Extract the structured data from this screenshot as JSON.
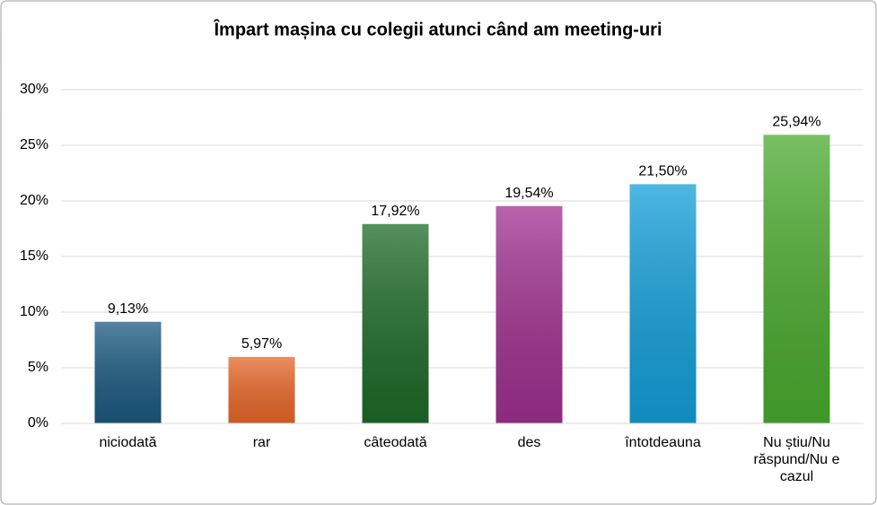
{
  "chart_data": {
    "type": "bar",
    "title": "Împart mașina cu colegii atunci când am meeting-uri",
    "categories": [
      "niciodată",
      "rar",
      "câteodată",
      "des",
      "întotdeauna",
      "Nu știu/Nu răspund/Nu e cazul"
    ],
    "values": [
      9.13,
      5.97,
      17.92,
      19.54,
      21.5,
      25.94
    ],
    "value_labels": [
      "9,13%",
      "5,97%",
      "17,92%",
      "19,54%",
      "21,50%",
      "25,94%"
    ],
    "colors": [
      "#1b5a80",
      "#e8682a",
      "#1d6b28",
      "#a0308f",
      "#139fd9",
      "#4aab2e"
    ],
    "ylim": [
      0,
      30
    ],
    "yticks": [
      {
        "value": 0,
        "label": "0%"
      },
      {
        "value": 5,
        "label": "5%"
      },
      {
        "value": 10,
        "label": "10%"
      },
      {
        "value": 15,
        "label": "15%"
      },
      {
        "value": 20,
        "label": "20%"
      },
      {
        "value": 25,
        "label": "25%"
      },
      {
        "value": 30,
        "label": "30%"
      }
    ],
    "grid": true
  }
}
